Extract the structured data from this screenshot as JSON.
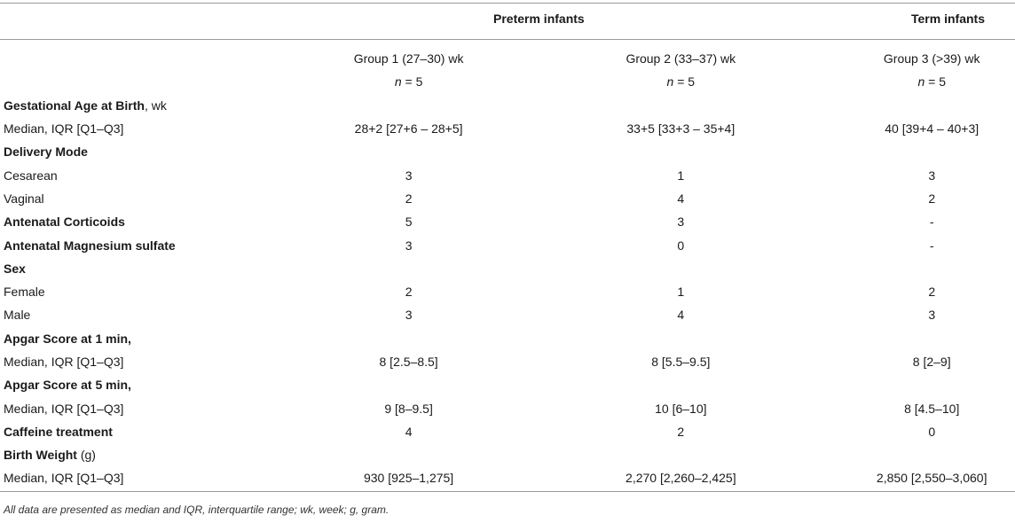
{
  "header": {
    "preterm_label": "Preterm infants",
    "term_label": "Term infants"
  },
  "columns": [
    {
      "name": "Group 1 (27–30) wk",
      "n_label": "n",
      "n_value": " = 5"
    },
    {
      "name": "Group 2 (33–37) wk",
      "n_label": "n",
      "n_value": " = 5"
    },
    {
      "name": "Group 3 (>39) wk",
      "n_label": "n",
      "n_value": " = 5"
    }
  ],
  "rows": [
    {
      "label": "Gestational Age at Birth",
      "unit": ", wk",
      "g1": "",
      "g2": "",
      "g3": ""
    },
    {
      "label": "Median, IQR [Q1–Q3]",
      "g1": "28+2 [27+6 – 28+5]",
      "g2": "33+5 [33+3 – 35+4]",
      "g3": "40 [39+4 – 40+3]"
    },
    {
      "label": "Delivery Mode",
      "g1": "",
      "g2": "",
      "g3": ""
    },
    {
      "label": "Cesarean",
      "g1": "3",
      "g2": "1",
      "g3": "3"
    },
    {
      "label": "Vaginal",
      "g1": "2",
      "g2": "4",
      "g3": "2"
    },
    {
      "label": "Antenatal Corticoids",
      "g1": "5",
      "g2": "3",
      "g3": "-"
    },
    {
      "label": "Antenatal Magnesium sulfate",
      "g1": "3",
      "g2": "0",
      "g3": "-"
    },
    {
      "label": "Sex",
      "g1": "",
      "g2": "",
      "g3": ""
    },
    {
      "label": "Female",
      "g1": "2",
      "g2": "1",
      "g3": "2"
    },
    {
      "label": "Male",
      "g1": "3",
      "g2": "4",
      "g3": "3"
    },
    {
      "label": "Apgar Score at 1 min,",
      "g1": "",
      "g2": "",
      "g3": ""
    },
    {
      "label": "Median, IQR [Q1–Q3]",
      "g1": "8 [2.5–8.5]",
      "g2": "8 [5.5–9.5]",
      "g3": "8 [2–9]"
    },
    {
      "label": "Apgar Score at 5 min,",
      "g1": "",
      "g2": "",
      "g3": ""
    },
    {
      "label": "Median, IQR [Q1–Q3]",
      "g1": "9 [8–9.5]",
      "g2": "10 [6–10]",
      "g3": "8 [4.5–10]"
    },
    {
      "label": "Caffeine treatment",
      "g1": "4",
      "g2": "2",
      "g3": "0"
    },
    {
      "label": "Birth Weight",
      "unit": " (g)",
      "g1": "",
      "g2": "",
      "g3": ""
    },
    {
      "label": "Median, IQR [Q1–Q3]",
      "g1": "930 [925–1,275]",
      "g2": "2,270 [2,260–2,425]",
      "g3": "2,850 [2,550–3,060]"
    }
  ],
  "footnote": "All data are presented as median and IQR, interquartile range; wk, week; g, gram."
}
